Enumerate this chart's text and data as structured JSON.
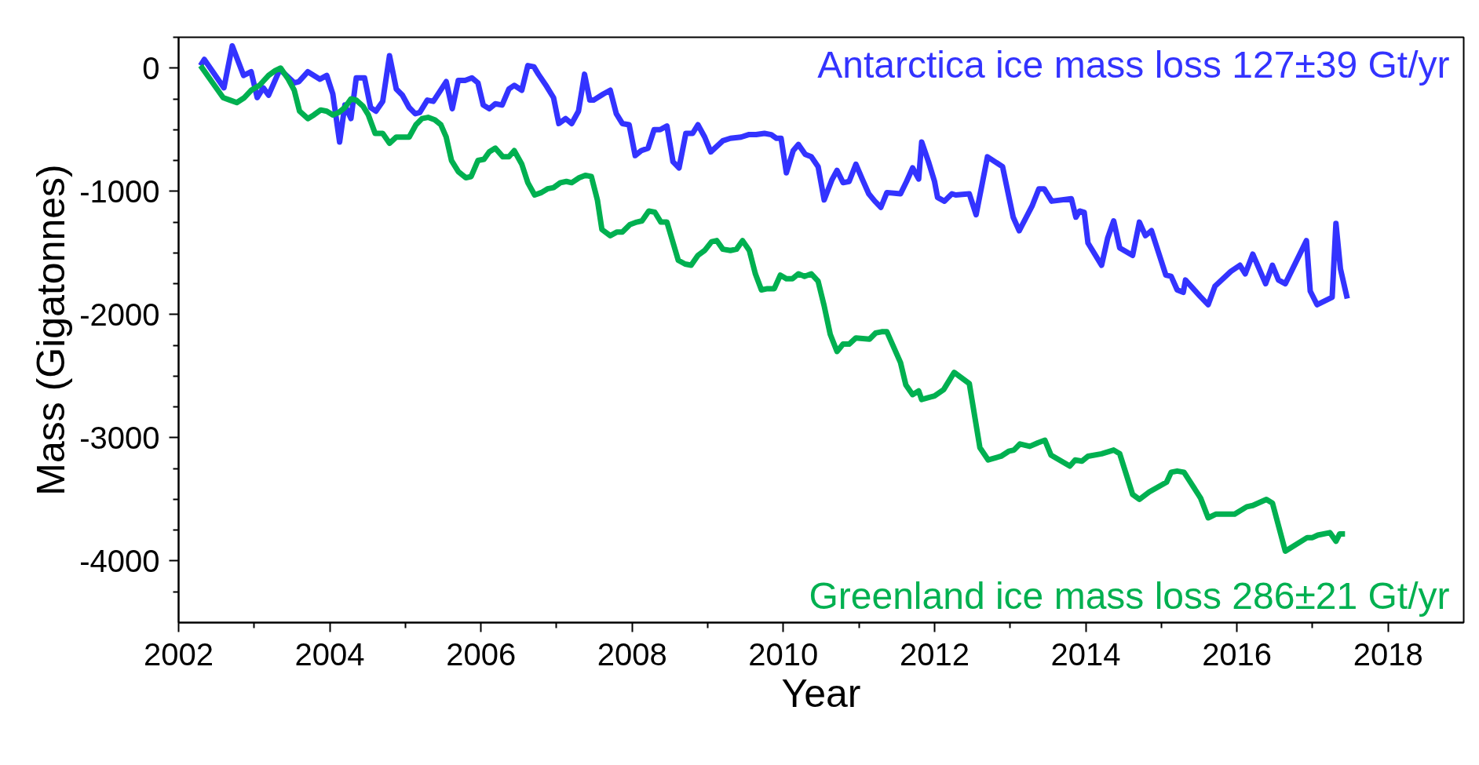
{
  "chart_data": {
    "type": "line",
    "xlabel": "Year",
    "ylabel": "Mass (Gigatonnes)",
    "xlim": [
      2002,
      2019
    ],
    "ylim": [
      -4500,
      250
    ],
    "xticks": [
      2002,
      {
        "value": 2003,
        "label": null
      },
      2004,
      {
        "value": 2005,
        "label": null
      },
      2006,
      {
        "value": 2007,
        "label": null
      },
      2008,
      {
        "value": 2009,
        "label": null
      },
      2010,
      {
        "value": 2011,
        "label": null
      },
      2012,
      {
        "value": 2013,
        "label": null
      },
      2014,
      {
        "value": 2015,
        "label": null
      },
      2016,
      {
        "value": 2017,
        "label": null
      },
      2018
    ],
    "yticks": [
      {
        "value": 250,
        "label": null
      },
      0,
      {
        "value": -250,
        "label": null
      },
      {
        "value": -500,
        "label": null
      },
      {
        "value": -750,
        "label": null
      },
      -1000,
      {
        "value": -1250,
        "label": null
      },
      {
        "value": -1500,
        "label": null
      },
      {
        "value": -1750,
        "label": null
      },
      -2000,
      {
        "value": -2250,
        "label": null
      },
      {
        "value": -2500,
        "label": null
      },
      {
        "value": -2750,
        "label": null
      },
      -3000,
      {
        "value": -3250,
        "label": null
      },
      {
        "value": -3500,
        "label": null
      },
      {
        "value": -3750,
        "label": null
      },
      -4000,
      {
        "value": -4250,
        "label": null
      }
    ],
    "grid": false,
    "marker": "none",
    "line_style": "solid",
    "series": [
      {
        "name": "Antarctica ice mass loss 127±39 Gt/yr",
        "color": "#3333ff",
        "x": [
          2002.29,
          2002.34,
          2002.6,
          2002.71,
          2002.86,
          2002.96,
          2003.04,
          2003.12,
          2003.19,
          2003.34,
          2003.53,
          2003.59,
          2003.71,
          2003.87,
          2003.96,
          2004.04,
          2004.13,
          2004.2,
          2004.28,
          2004.35,
          2004.46,
          2004.54,
          2004.61,
          2004.7,
          2004.79,
          2004.88,
          2004.96,
          2005.05,
          2005.13,
          2005.19,
          2005.29,
          2005.37,
          2005.54,
          2005.62,
          2005.7,
          2005.79,
          2005.88,
          2005.96,
          2006.03,
          2006.11,
          2006.19,
          2006.28,
          2006.37,
          2006.44,
          2006.54,
          2006.62,
          2006.7,
          2006.76,
          2006.87,
          2006.96,
          2007.03,
          2007.12,
          2007.2,
          2007.29,
          2007.37,
          2007.44,
          2007.49,
          2007.62,
          2007.71,
          2007.79,
          2007.87,
          2007.96,
          2008.04,
          2008.12,
          2008.21,
          2008.29,
          2008.37,
          2008.46,
          2008.54,
          2008.62,
          2008.71,
          2008.8,
          2008.87,
          2008.96,
          2009.04,
          2009.2,
          2009.3,
          2009.44,
          2009.54,
          2009.64,
          2009.75,
          2009.84,
          2009.91,
          2009.97,
          2010.04,
          2010.13,
          2010.2,
          2010.29,
          2010.37,
          2010.46,
          2010.54,
          2010.64,
          2010.71,
          2010.79,
          2010.87,
          2010.96,
          2011.05,
          2011.13,
          2011.21,
          2011.29,
          2011.37,
          2011.55,
          2011.63,
          2011.71,
          2011.79,
          2011.83,
          2011.92,
          2012.0,
          2012.04,
          2012.13,
          2012.23,
          2012.28,
          2012.46,
          2012.55,
          2012.7,
          2012.9,
          2013.04,
          2013.12,
          2013.29,
          2013.38,
          2013.45,
          2013.55,
          2013.81,
          2013.87,
          2013.92,
          2013.98,
          2014.03,
          2014.21,
          2014.29,
          2014.37,
          2014.45,
          2014.62,
          2014.71,
          2014.79,
          2014.87,
          2015.06,
          2015.13,
          2015.21,
          2015.29,
          2015.32,
          2015.51,
          2015.62,
          2015.71,
          2015.92,
          2016.04,
          2016.11,
          2016.21,
          2016.38,
          2016.47,
          2016.55,
          2016.64,
          2016.92,
          2016.97,
          2017.06,
          2017.26,
          2017.31,
          2017.37,
          2017.46
        ],
        "values": [
          20,
          70,
          -160,
          180,
          -60,
          -30,
          -240,
          -160,
          -220,
          -10,
          -120,
          -110,
          -30,
          -90,
          -60,
          -210,
          -600,
          -300,
          -410,
          -80,
          -80,
          -320,
          -350,
          -270,
          100,
          -170,
          -220,
          -320,
          -370,
          -360,
          -260,
          -270,
          -110,
          -330,
          -100,
          -100,
          -80,
          -120,
          -300,
          -330,
          -290,
          -300,
          -170,
          -140,
          -180,
          20,
          10,
          -50,
          -150,
          -240,
          -450,
          -410,
          -450,
          -350,
          -50,
          -260,
          -260,
          -210,
          -180,
          -370,
          -450,
          -460,
          -710,
          -670,
          -650,
          -500,
          -500,
          -470,
          -760,
          -810,
          -530,
          -530,
          -460,
          -560,
          -680,
          -590,
          -570,
          -560,
          -540,
          -540,
          -530,
          -540,
          -570,
          -570,
          -850,
          -670,
          -620,
          -700,
          -720,
          -800,
          -1070,
          -910,
          -830,
          -930,
          -920,
          -780,
          -910,
          -1020,
          -1080,
          -1130,
          -1010,
          -1020,
          -920,
          -810,
          -900,
          -600,
          -760,
          -920,
          -1050,
          -1080,
          -1020,
          -1030,
          -1020,
          -1190,
          -720,
          -800,
          -1210,
          -1320,
          -1120,
          -980,
          -980,
          -1080,
          -1060,
          -1210,
          -1160,
          -1170,
          -1420,
          -1600,
          -1380,
          -1240,
          -1460,
          -1520,
          -1250,
          -1360,
          -1320,
          -1680,
          -1690,
          -1800,
          -1820,
          -1720,
          -1850,
          -1920,
          -1770,
          -1650,
          -1600,
          -1670,
          -1510,
          -1750,
          -1600,
          -1720,
          -1750,
          -1400,
          -1810,
          -1920,
          -1860,
          -1260,
          -1630,
          -1870
        ]
      },
      {
        "name": "Greenland ice mass loss 286±21 Gt/yr",
        "color": "#00b050",
        "x": [
          2002.29,
          2002.45,
          2002.59,
          2002.68,
          2002.77,
          2002.87,
          2002.96,
          2003.07,
          2003.19,
          2003.28,
          2003.35,
          2003.45,
          2003.53,
          2003.6,
          2003.71,
          2003.79,
          2003.88,
          2003.96,
          2004.04,
          2004.12,
          2004.2,
          2004.28,
          2004.35,
          2004.44,
          2004.51,
          2004.6,
          2004.7,
          2004.79,
          2004.88,
          2004.97,
          2005.05,
          2005.14,
          2005.22,
          2005.3,
          2005.39,
          2005.47,
          2005.54,
          2005.61,
          2005.7,
          2005.8,
          2005.87,
          2005.96,
          2006.04,
          2006.11,
          2006.19,
          2006.29,
          2006.37,
          2006.44,
          2006.54,
          2006.62,
          2006.71,
          2006.8,
          2006.88,
          2006.96,
          2007.05,
          2007.13,
          2007.2,
          2007.3,
          2007.38,
          2007.46,
          2007.54,
          2007.6,
          2007.71,
          2007.8,
          2007.87,
          2007.97,
          2008.06,
          2008.13,
          2008.22,
          2008.3,
          2008.38,
          2008.46,
          2008.61,
          2008.7,
          2008.78,
          2008.87,
          2008.96,
          2009.05,
          2009.12,
          2009.2,
          2009.3,
          2009.38,
          2009.46,
          2009.55,
          2009.63,
          2009.71,
          2009.79,
          2009.88,
          2009.96,
          2010.04,
          2010.12,
          2010.2,
          2010.28,
          2010.37,
          2010.46,
          2010.54,
          2010.62,
          2010.71,
          2010.79,
          2010.87,
          2010.96,
          2011.14,
          2011.22,
          2011.3,
          2011.37,
          2011.55,
          2011.62,
          2011.71,
          2011.79,
          2011.83,
          2012.0,
          2012.12,
          2012.26,
          2012.46,
          2012.6,
          2012.71,
          2012.88,
          2012.98,
          2013.05,
          2013.13,
          2013.26,
          2013.37,
          2013.46,
          2013.54,
          2013.79,
          2013.86,
          2013.95,
          2014.03,
          2014.21,
          2014.37,
          2014.45,
          2014.62,
          2014.71,
          2014.84,
          2015.07,
          2015.13,
          2015.21,
          2015.3,
          2015.52,
          2015.62,
          2015.72,
          2015.97,
          2016.13,
          2016.21,
          2016.39,
          2016.47,
          2016.64,
          2016.93,
          2017.0,
          2017.07,
          2017.23,
          2017.31,
          2017.36,
          2017.43
        ],
        "values": [
          20,
          -120,
          -240,
          -260,
          -280,
          -240,
          -180,
          -140,
          -60,
          -20,
          0,
          -90,
          -180,
          -350,
          -410,
          -380,
          -340,
          -350,
          -380,
          -360,
          -320,
          -250,
          -260,
          -310,
          -380,
          -530,
          -530,
          -610,
          -560,
          -560,
          -560,
          -460,
          -410,
          -400,
          -420,
          -460,
          -560,
          -750,
          -840,
          -890,
          -880,
          -750,
          -740,
          -680,
          -650,
          -720,
          -720,
          -670,
          -780,
          -930,
          -1030,
          -1010,
          -980,
          -970,
          -930,
          -920,
          -930,
          -890,
          -870,
          -880,
          -1070,
          -1310,
          -1360,
          -1330,
          -1330,
          -1270,
          -1250,
          -1240,
          -1160,
          -1170,
          -1250,
          -1250,
          -1560,
          -1590,
          -1600,
          -1520,
          -1480,
          -1410,
          -1400,
          -1470,
          -1480,
          -1470,
          -1400,
          -1480,
          -1670,
          -1800,
          -1790,
          -1790,
          -1680,
          -1710,
          -1710,
          -1670,
          -1690,
          -1670,
          -1730,
          -1930,
          -2160,
          -2300,
          -2240,
          -2240,
          -2190,
          -2200,
          -2150,
          -2140,
          -2140,
          -2390,
          -2570,
          -2650,
          -2620,
          -2690,
          -2660,
          -2610,
          -2470,
          -2560,
          -3080,
          -3180,
          -3150,
          -3110,
          -3100,
          -3050,
          -3070,
          -3040,
          -3020,
          -3140,
          -3230,
          -3180,
          -3190,
          -3150,
          -3130,
          -3100,
          -3130,
          -3460,
          -3500,
          -3440,
          -3360,
          -3280,
          -3270,
          -3280,
          -3490,
          -3650,
          -3620,
          -3620,
          -3560,
          -3550,
          -3500,
          -3530,
          -3920,
          -3810,
          -3810,
          -3790,
          -3770,
          -3840,
          -3780,
          -3780
        ]
      }
    ]
  }
}
